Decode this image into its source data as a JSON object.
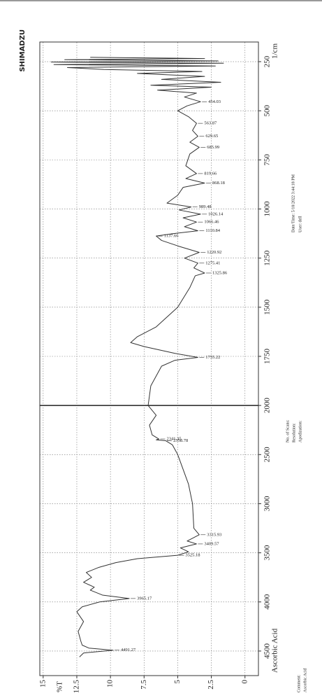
{
  "chart_data": {
    "type": "line",
    "brand": "SHIMADZU",
    "sample": "Ascorbic Acid",
    "x_label": "1/cm",
    "y_label": "%T",
    "info": [
      "Date/Time: 5/18/2022 3:44:18 PM",
      "User: dell"
    ],
    "scan_info": [
      "No. of Scans:",
      "Resolution:",
      "Apodization:"
    ],
    "comment": [
      "Comment:",
      "Ascorbic Acid"
    ],
    "color": "#333333",
    "x_break": 2000,
    "xlim": [
      4750,
      150
    ],
    "ylim": [
      -1,
      15.25
    ],
    "xticks": [
      4500,
      4000,
      3500,
      3000,
      2500,
      2000,
      1750,
      1500,
      1250,
      1000,
      750,
      500,
      250
    ],
    "yticks": [
      15,
      12.5,
      10,
      7.5,
      5,
      2.5,
      0
    ],
    "grid": true,
    "x": [
      4560,
      4520,
      4491.27,
      4470,
      4440,
      4400,
      4300,
      4200,
      4100,
      4050,
      4000,
      3965.17,
      3930,
      3880,
      3850,
      3800,
      3750,
      3700,
      3650,
      3600,
      3560,
      3525.18,
      3490,
      3450,
      3409.57,
      3380,
      3315.93,
      3250,
      3000,
      2800,
      2500,
      2400,
      2358.78,
      2350,
      2341.35,
      2300,
      2200,
      2100,
      2000,
      1900,
      1800,
      1770,
      1755.22,
      1735,
      1700,
      1680,
      1650,
      1600,
      1500,
      1400,
      1340,
      1325.86,
      1300,
      1275.41,
      1250,
      1220.92,
      1190,
      1160,
      1137.66,
      1125,
      1110.84,
      1090,
      1066.46,
      1045,
      1026.14,
      1005,
      989.48,
      970,
      930,
      890,
      868.18,
      845,
      819.66,
      780,
      720,
      685.99,
      660,
      629.65,
      600,
      563.87,
      530,
      500,
      475,
      454.03,
      430,
      410,
      395,
      380,
      370,
      355,
      340,
      325,
      310,
      300,
      290,
      280,
      272,
      265,
      258,
      252,
      246,
      240,
      234,
      228
    ],
    "values": [
      12.3,
      12.0,
      9.8,
      11.6,
      12.1,
      12.2,
      12.4,
      12.0,
      12.5,
      12.1,
      10.8,
      8.6,
      10.6,
      11.5,
      11.2,
      12.0,
      11.4,
      11.8,
      10.9,
      9.6,
      8.0,
      5.0,
      4.2,
      4.8,
      3.6,
      4.3,
      3.4,
      3.8,
      3.9,
      4.2,
      5.0,
      5.4,
      5.9,
      6.6,
      6.4,
      6.9,
      7.1,
      6.6,
      7.2,
      7.0,
      6.2,
      5.2,
      3.5,
      5.2,
      7.5,
      8.5,
      8.0,
      6.6,
      5.0,
      4.1,
      3.7,
      3.0,
      3.8,
      3.5,
      4.5,
      3.4,
      4.9,
      6.2,
      6.6,
      5.3,
      3.5,
      4.5,
      3.6,
      4.6,
      3.3,
      4.9,
      4.0,
      5.8,
      5.0,
      4.6,
      3.0,
      4.4,
      3.6,
      4.4,
      4.1,
      3.4,
      4.1,
      3.5,
      3.9,
      3.6,
      4.2,
      5.0,
      4.3,
      3.3,
      4.5,
      3.6,
      6.5,
      2.5,
      7.0,
      1.8,
      6.2,
      3.0,
      8.0,
      3.2,
      10.5,
      13.2,
      2.2,
      14.2,
      1.6,
      14.4,
      2.0,
      13.4,
      3.0,
      11.5
    ],
    "peaks": [
      4491.27,
      3965.17,
      3525.18,
      3409.57,
      3315.93,
      2358.78,
      2341.35,
      1755.22,
      1325.86,
      1275.41,
      1220.92,
      1137.66,
      1110.84,
      1066.46,
      1026.14,
      989.48,
      868.18,
      819.66,
      685.99,
      629.65,
      563.87,
      454.03
    ]
  }
}
